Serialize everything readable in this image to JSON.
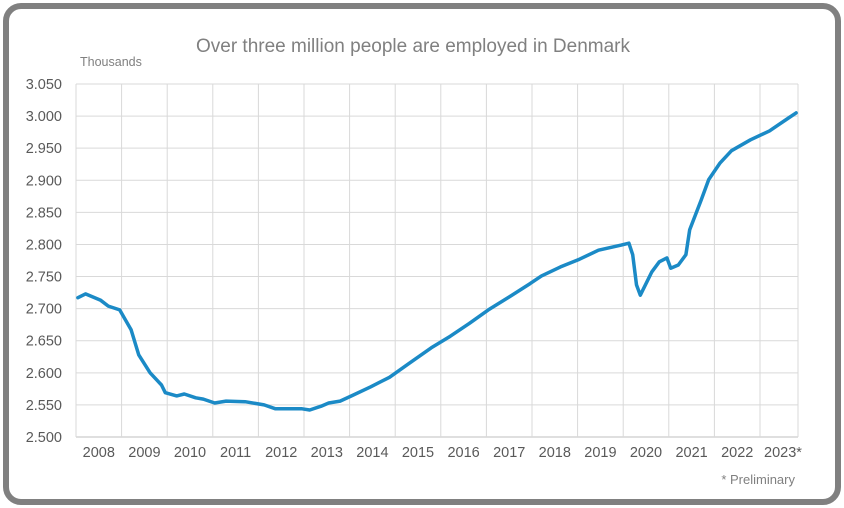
{
  "chart_data": {
    "type": "line",
    "title": "Over three million people are employed in Denmark",
    "ylabel": "Thousands",
    "xlabel": "",
    "ylim": [
      2500,
      3050
    ],
    "yticks": [
      2500,
      2550,
      2600,
      2650,
      2700,
      2750,
      2800,
      2850,
      2900,
      2950,
      3000,
      3050
    ],
    "ytick_labels": [
      "2.500",
      "2.550",
      "2.600",
      "2.650",
      "2.700",
      "2.750",
      "2.800",
      "2.850",
      "2.900",
      "2.950",
      "3.000",
      "3.050"
    ],
    "xlim": [
      "2008-01",
      "2023-10"
    ],
    "xtick_labels": [
      "2008",
      "2009",
      "2010",
      "2011",
      "2012",
      "2013",
      "2014",
      "2015",
      "2016",
      "2017",
      "2018",
      "2019",
      "2020",
      "2021",
      "2022",
      "2023*"
    ],
    "grid": true,
    "line_color": "#1b8ac6",
    "footnote": "* Preliminary",
    "series": [
      {
        "points": [
          [
            "2008-01",
            2717
          ],
          [
            "2008-03",
            2723
          ],
          [
            "2008-07",
            2713
          ],
          [
            "2008-09",
            2704
          ],
          [
            "2008-12",
            2698
          ],
          [
            "2009-03",
            2667
          ],
          [
            "2009-05",
            2628
          ],
          [
            "2009-08",
            2600
          ],
          [
            "2009-11",
            2581
          ],
          [
            "2009-12",
            2569
          ],
          [
            "2010-03",
            2564
          ],
          [
            "2010-05",
            2567
          ],
          [
            "2010-08",
            2561
          ],
          [
            "2010-10",
            2559
          ],
          [
            "2011-01",
            2553
          ],
          [
            "2011-04",
            2556
          ],
          [
            "2011-09",
            2555
          ],
          [
            "2012-02",
            2550
          ],
          [
            "2012-05",
            2544
          ],
          [
            "2012-12",
            2544
          ],
          [
            "2013-02",
            2542
          ],
          [
            "2013-05",
            2548
          ],
          [
            "2013-07",
            2553
          ],
          [
            "2013-10",
            2556
          ],
          [
            "2014-01",
            2564
          ],
          [
            "2014-06",
            2578
          ],
          [
            "2014-11",
            2593
          ],
          [
            "2015-04",
            2614
          ],
          [
            "2015-10",
            2639
          ],
          [
            "2016-03",
            2657
          ],
          [
            "2016-08",
            2677
          ],
          [
            "2017-01",
            2698
          ],
          [
            "2017-07",
            2720
          ],
          [
            "2017-12",
            2739
          ],
          [
            "2018-03",
            2751
          ],
          [
            "2018-08",
            2765
          ],
          [
            "2019-01",
            2777
          ],
          [
            "2019-06",
            2791
          ],
          [
            "2019-12",
            2799
          ],
          [
            "2020-02",
            2802
          ],
          [
            "2020-03",
            2784
          ],
          [
            "2020-04",
            2737
          ],
          [
            "2020-05",
            2721
          ],
          [
            "2020-08",
            2757
          ],
          [
            "2020-10",
            2773
          ],
          [
            "2020-12",
            2779
          ],
          [
            "2021-01",
            2763
          ],
          [
            "2021-03",
            2768
          ],
          [
            "2021-05",
            2784
          ],
          [
            "2021-06",
            2823
          ],
          [
            "2021-09",
            2869
          ],
          [
            "2021-11",
            2901
          ],
          [
            "2022-02",
            2927
          ],
          [
            "2022-05",
            2946
          ],
          [
            "2022-10",
            2963
          ],
          [
            "2023-03",
            2977
          ],
          [
            "2023-08",
            2997
          ],
          [
            "2023-10",
            3005
          ]
        ]
      }
    ]
  }
}
